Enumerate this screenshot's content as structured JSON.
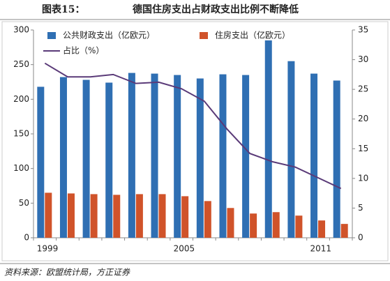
{
  "chart_data": {
    "type": "bar",
    "figure_label": "图表15：",
    "title": "德国住房支出占财政支出比例不断降低",
    "source": "资料来源：欧盟统计局，方正证券",
    "categories": [
      "1999",
      null,
      null,
      null,
      null,
      null,
      "2005",
      null,
      null,
      null,
      null,
      null,
      "2011",
      null
    ],
    "series": [
      {
        "name": "公共财政支出（亿欧元）",
        "color": "#2f6fb3",
        "type": "bar",
        "values": [
          218,
          232,
          228,
          224,
          238,
          237,
          235,
          230,
          236,
          235,
          285,
          255,
          237,
          227
        ]
      },
      {
        "name": "住房支出（亿欧元）",
        "color": "#d0532a",
        "type": "bar",
        "values": [
          65,
          64,
          63,
          62,
          63,
          63,
          60,
          53,
          43,
          35,
          37,
          32,
          25,
          20
        ]
      },
      {
        "name": "占比（%）",
        "color": "#5a3a78",
        "type": "line",
        "axis": "y2",
        "values": [
          29.4,
          27.1,
          27.1,
          27.5,
          26,
          26.2,
          25.1,
          23,
          18.3,
          14.2,
          12.8,
          11.9,
          10.1,
          8.3
        ]
      }
    ],
    "ylim": [
      0,
      300
    ],
    "yticks": [
      0,
      50,
      100,
      150,
      200,
      250,
      300
    ],
    "y2lim": [
      0,
      35
    ],
    "y2ticks": [
      0,
      5,
      10,
      15,
      20,
      25,
      30,
      35
    ],
    "legend": "top-left"
  }
}
